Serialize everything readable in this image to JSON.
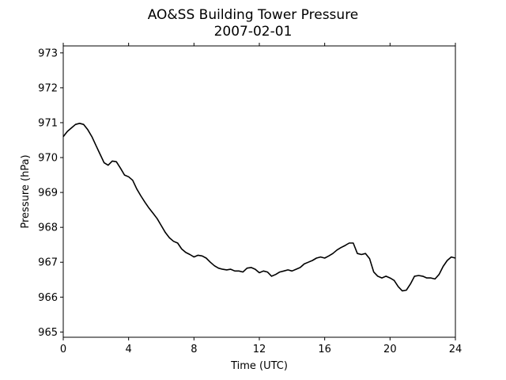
{
  "chart_data": {
    "type": "line",
    "title": "AO&SS Building Tower Pressure",
    "subtitle": "2007-02-01",
    "xlabel": "Time (UTC)",
    "ylabel": "Pressure (hPa)",
    "xlim": [
      0,
      24
    ],
    "ylim": [
      964.85,
      973.2
    ],
    "xticks": [
      0,
      4,
      8,
      12,
      16,
      20,
      24
    ],
    "yticks": [
      965,
      966,
      967,
      968,
      969,
      970,
      971,
      972,
      973
    ],
    "grid": false,
    "line_color": "#000000",
    "series": [
      {
        "x": [
          0,
          0.25,
          0.5,
          0.75,
          1.0,
          1.25,
          1.5,
          1.75,
          2.0,
          2.25,
          2.5,
          2.75,
          3.0,
          3.25,
          3.5,
          3.75,
          4.0,
          4.25,
          4.5,
          4.75,
          5.0,
          5.25,
          5.5,
          5.75,
          6.0,
          6.25,
          6.5,
          6.75,
          7.0,
          7.25,
          7.5,
          7.75,
          8.0,
          8.25,
          8.5,
          8.75,
          9.0,
          9.25,
          9.5,
          9.75,
          10.0,
          10.25,
          10.5,
          10.75,
          11.0,
          11.25,
          11.5,
          11.75,
          12.0,
          12.25,
          12.5,
          12.75,
          13.0,
          13.25,
          13.5,
          13.75,
          14.0,
          14.25,
          14.5,
          14.75,
          15.0,
          15.25,
          15.5,
          15.75,
          16.0,
          16.25,
          16.5,
          16.75,
          17.0,
          17.25,
          17.5,
          17.75,
          18.0,
          18.25,
          18.5,
          18.75,
          19.0,
          19.25,
          19.5,
          19.75,
          20.0,
          20.25,
          20.5,
          20.75,
          21.0,
          21.25,
          21.5,
          21.75,
          22.0,
          22.25,
          22.5,
          22.75,
          23.0,
          23.25,
          23.5,
          23.75,
          24.0
        ],
        "y": [
          970.6,
          970.75,
          970.85,
          970.95,
          970.98,
          970.95,
          970.8,
          970.6,
          970.35,
          970.1,
          969.85,
          969.78,
          969.9,
          969.88,
          969.7,
          969.5,
          969.45,
          969.35,
          969.1,
          968.9,
          968.72,
          968.55,
          968.4,
          968.25,
          968.05,
          967.85,
          967.7,
          967.6,
          967.55,
          967.38,
          967.28,
          967.22,
          967.15,
          967.2,
          967.18,
          967.12,
          967.0,
          966.9,
          966.83,
          966.8,
          966.78,
          966.8,
          966.75,
          966.75,
          966.72,
          966.83,
          966.85,
          966.8,
          966.7,
          966.75,
          966.72,
          966.6,
          966.65,
          966.72,
          966.75,
          966.78,
          966.75,
          966.8,
          966.85,
          966.95,
          967.0,
          967.05,
          967.12,
          967.15,
          967.12,
          967.18,
          967.25,
          967.35,
          967.42,
          967.48,
          967.55,
          967.55,
          967.25,
          967.22,
          967.25,
          967.1,
          966.72,
          966.6,
          966.55,
          966.6,
          966.55,
          966.48,
          966.3,
          966.18,
          966.2,
          966.38,
          966.6,
          966.62,
          966.6,
          966.55,
          966.55,
          966.52,
          966.65,
          966.88,
          967.05,
          967.15,
          967.12
        ]
      }
    ]
  }
}
